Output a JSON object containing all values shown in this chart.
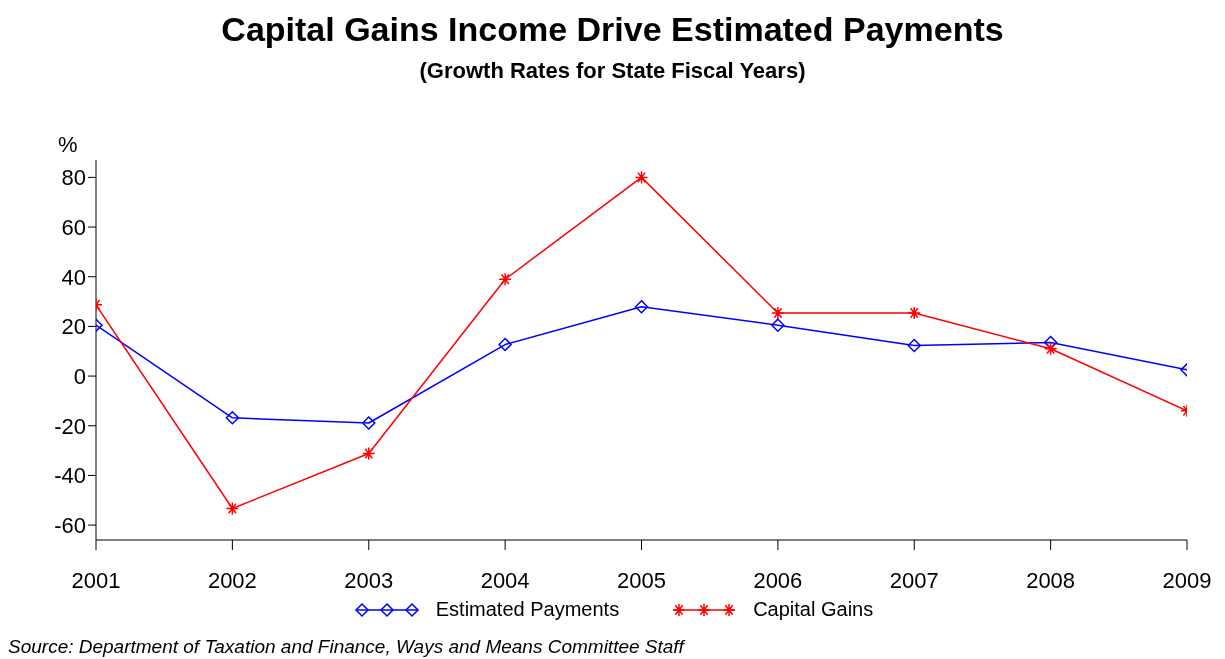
{
  "chart_data": {
    "type": "line",
    "title": "Capital Gains Income Drive Estimated Payments",
    "subtitle": "(Growth Rates for State Fiscal Years)",
    "ylabel": "%",
    "x": [
      2001,
      2002,
      2003,
      2004,
      2005,
      2006,
      2007,
      2008,
      2009
    ],
    "xlim": [
      2001,
      2009
    ],
    "xticks": [
      2001,
      2002,
      2003,
      2004,
      2005,
      2006,
      2007,
      2008,
      2009
    ],
    "ylim": [
      -66,
      87
    ],
    "yticks": [
      -60,
      -40,
      -20,
      0,
      20,
      40,
      60,
      80
    ],
    "series": [
      {
        "name": "Estimated Payments",
        "color": "#0000ff",
        "marker": "diamond",
        "values": [
          20.5,
          -16.8,
          -18.9,
          12.7,
          27.9,
          20.5,
          12.3,
          13.5,
          2.5
        ]
      },
      {
        "name": "Capital Gains",
        "color": "#ff0000",
        "marker": "cross",
        "values": [
          28.7,
          -53.3,
          -31.2,
          39,
          80,
          25.4,
          25.4,
          11,
          -14
        ]
      }
    ],
    "grid": false,
    "legend": "bottom",
    "line_style": "solid",
    "annotations": [
      "Source: Department of Taxation and Finance, Ways and Means Committee Staff"
    ]
  }
}
